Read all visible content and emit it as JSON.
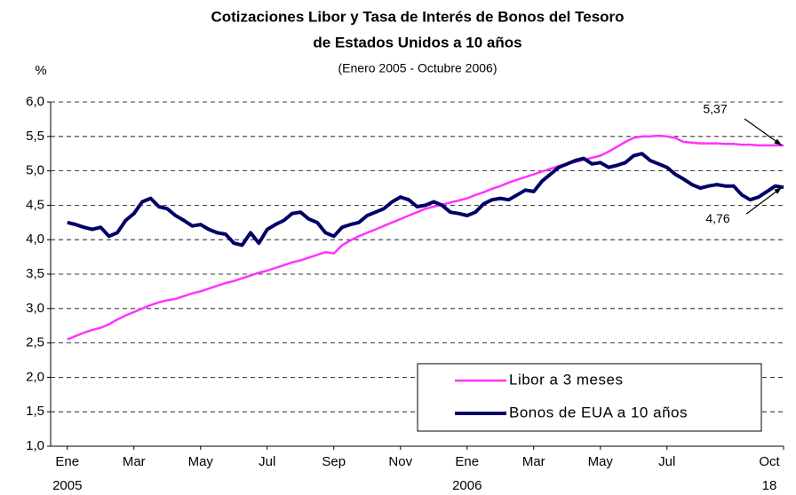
{
  "chart_data": {
    "type": "line",
    "title": "Cotizaciones Libor y Tasa de Interés de Bonos del Tesoro",
    "title_line2": "de Estados Unidos  a 10 años",
    "subtitle": "(Enero 2005 - Octubre 2006)",
    "y_label": "%",
    "categories": [
      "Ene\n2005",
      null,
      null,
      null,
      null,
      null,
      null,
      null,
      "Mar",
      null,
      null,
      null,
      null,
      null,
      null,
      null,
      "May",
      null,
      null,
      null,
      null,
      null,
      null,
      null,
      "Jul",
      null,
      null,
      null,
      null,
      null,
      null,
      null,
      "Sep",
      null,
      null,
      null,
      null,
      null,
      null,
      null,
      "Nov",
      null,
      null,
      null,
      null,
      null,
      null,
      null,
      "Ene\n2006",
      null,
      null,
      null,
      null,
      null,
      null,
      null,
      "Mar",
      null,
      null,
      null,
      null,
      null,
      null,
      null,
      "May",
      null,
      null,
      null,
      null,
      null,
      null,
      null,
      "Jul",
      null,
      null,
      null,
      null,
      null,
      null,
      null,
      null,
      null,
      null,
      null,
      null,
      null,
      "Oct\n18"
    ],
    "series": [
      {
        "name": "Libor a 3 meses",
        "color": "#ff33ff",
        "values": [
          2.55,
          2.6,
          2.65,
          2.69,
          2.72,
          2.77,
          2.84,
          2.9,
          2.95,
          3.0,
          3.05,
          3.09,
          3.12,
          3.14,
          3.18,
          3.22,
          3.25,
          3.29,
          3.33,
          3.37,
          3.4,
          3.44,
          3.48,
          3.52,
          3.55,
          3.59,
          3.63,
          3.67,
          3.7,
          3.74,
          3.78,
          3.82,
          3.8,
          3.92,
          3.99,
          4.05,
          4.1,
          4.15,
          4.2,
          4.25,
          4.3,
          4.35,
          4.4,
          4.45,
          4.48,
          4.51,
          4.54,
          4.57,
          4.6,
          4.65,
          4.69,
          4.74,
          4.78,
          4.83,
          4.87,
          4.91,
          4.95,
          4.99,
          5.03,
          5.07,
          5.1,
          5.13,
          5.16,
          5.19,
          5.22,
          5.28,
          5.35,
          5.42,
          5.48,
          5.5,
          5.5,
          5.51,
          5.5,
          5.48,
          5.42,
          5.41,
          5.4,
          5.4,
          5.4,
          5.39,
          5.39,
          5.38,
          5.38,
          5.37,
          5.37,
          5.37,
          5.37
        ]
      },
      {
        "name": "Bonos de EUA a 10 años",
        "color": "#000066",
        "values": [
          4.25,
          4.22,
          4.18,
          4.15,
          4.18,
          4.05,
          4.1,
          4.28,
          4.38,
          4.55,
          4.6,
          4.48,
          4.45,
          4.35,
          4.28,
          4.2,
          4.22,
          4.15,
          4.1,
          4.08,
          3.95,
          3.92,
          4.1,
          3.95,
          4.15,
          4.22,
          4.28,
          4.38,
          4.4,
          4.3,
          4.25,
          4.1,
          4.05,
          4.18,
          4.22,
          4.25,
          4.35,
          4.4,
          4.45,
          4.55,
          4.62,
          4.58,
          4.48,
          4.5,
          4.55,
          4.5,
          4.4,
          4.38,
          4.35,
          4.4,
          4.52,
          4.58,
          4.6,
          4.58,
          4.65,
          4.72,
          4.7,
          4.85,
          4.95,
          5.05,
          5.1,
          5.15,
          5.18,
          5.1,
          5.12,
          5.05,
          5.08,
          5.12,
          5.22,
          5.25,
          5.15,
          5.1,
          5.05,
          4.95,
          4.88,
          4.8,
          4.75,
          4.78,
          4.8,
          4.78,
          4.78,
          4.65,
          4.58,
          4.62,
          4.7,
          4.78,
          4.76
        ]
      }
    ],
    "annotations": [
      "5,37",
      "4,76"
    ],
    "ylim": [
      1,
      6
    ],
    "yticks": [
      {
        "value": 1,
        "label": "1,0"
      },
      {
        "value": 1.5,
        "label": "1,5"
      },
      {
        "value": 2,
        "label": "2,0"
      },
      {
        "value": 2.5,
        "label": "2,5"
      },
      {
        "value": 3,
        "label": "3,0"
      },
      {
        "value": 3.5,
        "label": "3,5"
      },
      {
        "value": 4,
        "label": "4,0"
      },
      {
        "value": 4.5,
        "label": "4,5"
      },
      {
        "value": 5,
        "label": "5,0"
      },
      {
        "value": 5.5,
        "label": "5,5"
      },
      {
        "value": 6,
        "label": "6,0"
      }
    ],
    "grid": true,
    "legend": "lower right"
  }
}
